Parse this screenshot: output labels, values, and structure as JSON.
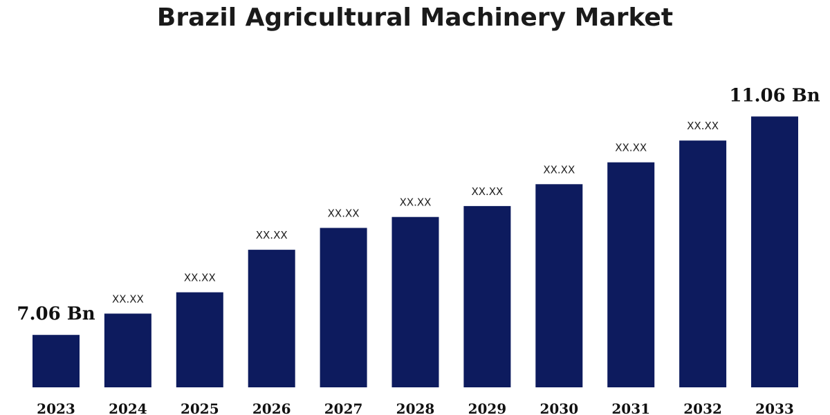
{
  "chart_data": {
    "type": "bar",
    "title": "Brazil Agricultural Machinery Market",
    "categories": [
      "2023",
      "2024",
      "2025",
      "2026",
      "2027",
      "2028",
      "2029",
      "2030",
      "2031",
      "2032",
      "2033"
    ],
    "values": [
      7.06,
      7.45,
      7.84,
      8.62,
      9.02,
      9.22,
      9.42,
      9.82,
      10.22,
      10.62,
      11.06
    ],
    "data_labels": [
      "7.06 Bn",
      "XX.XX",
      "XX.XX",
      "XX.XX",
      "XX.XX",
      "XX.XX",
      "XX.XX",
      "XX.XX",
      "XX.XX",
      "XX.XX",
      "11.06 Bn"
    ],
    "ylim": [
      6.1,
      11.8
    ],
    "xlabel": "",
    "ylabel": "",
    "grid": false,
    "legend": "none",
    "bar_color": "#0d1b5e"
  }
}
